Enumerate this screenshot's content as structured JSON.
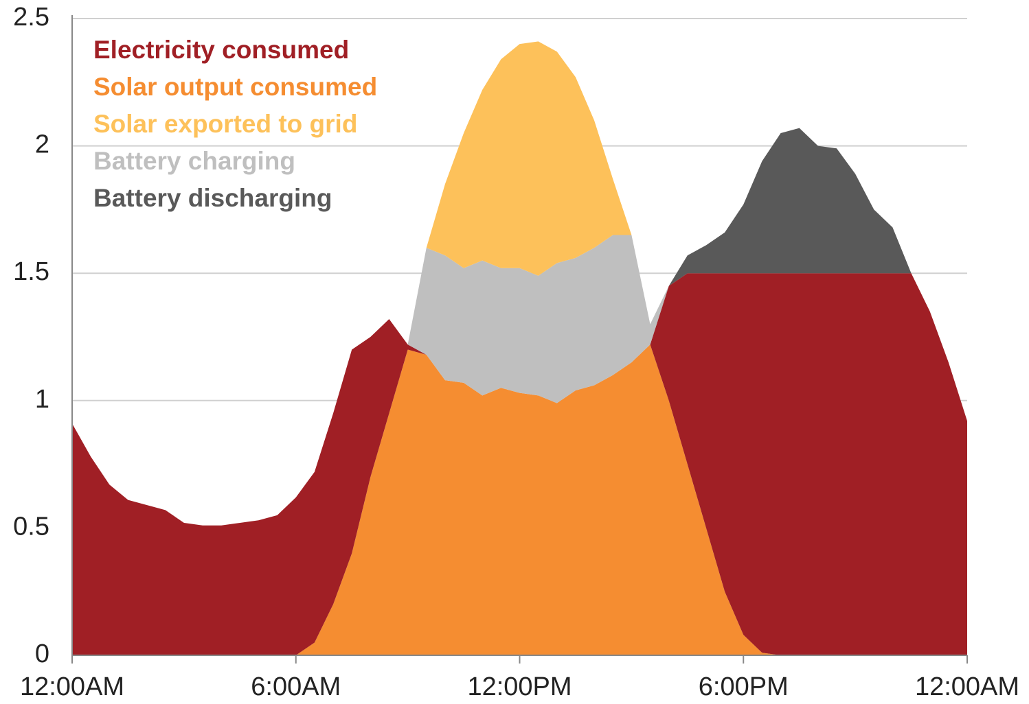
{
  "chart_data": {
    "type": "stacked_area",
    "x": [
      0,
      0.5,
      1,
      1.5,
      2,
      2.5,
      3,
      3.5,
      4,
      4.5,
      5,
      5.5,
      6,
      6.5,
      7,
      7.5,
      8,
      8.5,
      9,
      9.5,
      10,
      10.5,
      11,
      11.5,
      12,
      12.5,
      13,
      13.5,
      14,
      14.5,
      15,
      15.5,
      16,
      16.5,
      17,
      17.5,
      18,
      18.5,
      19,
      19.5,
      20,
      20.5,
      21,
      21.5,
      22,
      22.5,
      23,
      23.5,
      24
    ],
    "xlim": [
      0,
      24
    ],
    "xticks": [
      {
        "value": 0,
        "label": "12:00AM"
      },
      {
        "value": 6,
        "label": "6:00AM"
      },
      {
        "value": 12,
        "label": "12:00PM"
      },
      {
        "value": 18,
        "label": "6:00PM"
      },
      {
        "value": 24,
        "label": "12:00AM"
      }
    ],
    "ylim": [
      0,
      2.5
    ],
    "yticks": [
      0,
      0.5,
      1,
      1.5,
      2,
      2.5
    ],
    "grid": true,
    "legend": "upper left",
    "series": [
      {
        "name": "Electricity consumed",
        "color": "#a01f25",
        "values": [
          0.91,
          0.78,
          0.67,
          0.61,
          0.59,
          0.57,
          0.52,
          0.51,
          0.51,
          0.52,
          0.53,
          0.55,
          0.62,
          0.67,
          0.75,
          0.8,
          0.55,
          0.37,
          0.02,
          0,
          0,
          0,
          0,
          0,
          0,
          0,
          0,
          0,
          0,
          0,
          0,
          0,
          0.45,
          0.75,
          1.0,
          1.25,
          1.42,
          1.49,
          1.5,
          1.5,
          1.5,
          1.5,
          1.5,
          1.5,
          1.5,
          1.5,
          1.35,
          1.15,
          0.92
        ]
      },
      {
        "name": "Solar output consumed",
        "color": "#f58d31",
        "values": [
          0,
          0,
          0,
          0,
          0,
          0,
          0,
          0,
          0,
          0,
          0,
          0,
          0,
          0.05,
          0.2,
          0.4,
          0.7,
          0.95,
          1.2,
          1.18,
          1.08,
          1.07,
          1.02,
          1.05,
          1.03,
          1.02,
          0.99,
          1.04,
          1.06,
          1.1,
          1.15,
          1.22,
          1.0,
          0.75,
          0.5,
          0.25,
          0.08,
          0.01,
          0,
          0,
          0,
          0,
          0,
          0,
          0,
          0,
          0,
          0,
          0
        ]
      },
      {
        "name": "Solar exported to grid",
        "color": "#fdc15a",
        "values": [
          0,
          0,
          0,
          0,
          0,
          0,
          0,
          0,
          0,
          0,
          0,
          0,
          0,
          0,
          0,
          0,
          0,
          0,
          0,
          0,
          0.28,
          0.53,
          0.67,
          0.82,
          0.88,
          0.92,
          0.83,
          0.71,
          0.5,
          0.22,
          0,
          0,
          0,
          0,
          0,
          0,
          0,
          0,
          0,
          0,
          0,
          0,
          0,
          0,
          0,
          0,
          0,
          0,
          0
        ]
      },
      {
        "name": "Battery charging",
        "color": "#bfbfbf",
        "values": [
          0,
          0,
          0,
          0,
          0,
          0,
          0,
          0,
          0,
          0,
          0,
          0,
          0,
          0,
          0,
          0,
          0,
          0,
          0,
          0.42,
          0.49,
          0.45,
          0.53,
          0.47,
          0.49,
          0.47,
          0.55,
          0.52,
          0.54,
          0.55,
          0.5,
          0.08,
          0,
          0,
          0,
          0,
          0,
          0,
          0,
          0,
          0,
          0,
          0,
          0,
          0,
          0,
          0,
          0,
          0
        ]
      },
      {
        "name": "Battery discharging",
        "color": "#595959",
        "values": [
          0,
          0,
          0,
          0,
          0,
          0,
          0,
          0,
          0,
          0,
          0,
          0,
          0,
          0,
          0,
          0,
          0,
          0,
          0,
          0,
          0,
          0,
          0,
          0,
          0,
          0,
          0,
          0,
          0,
          0,
          0,
          0,
          0,
          0.07,
          0.11,
          0.16,
          0.27,
          0.44,
          0.55,
          0.57,
          0.5,
          0.49,
          0.39,
          0.25,
          0.18,
          0,
          0,
          0,
          0
        ]
      }
    ]
  }
}
